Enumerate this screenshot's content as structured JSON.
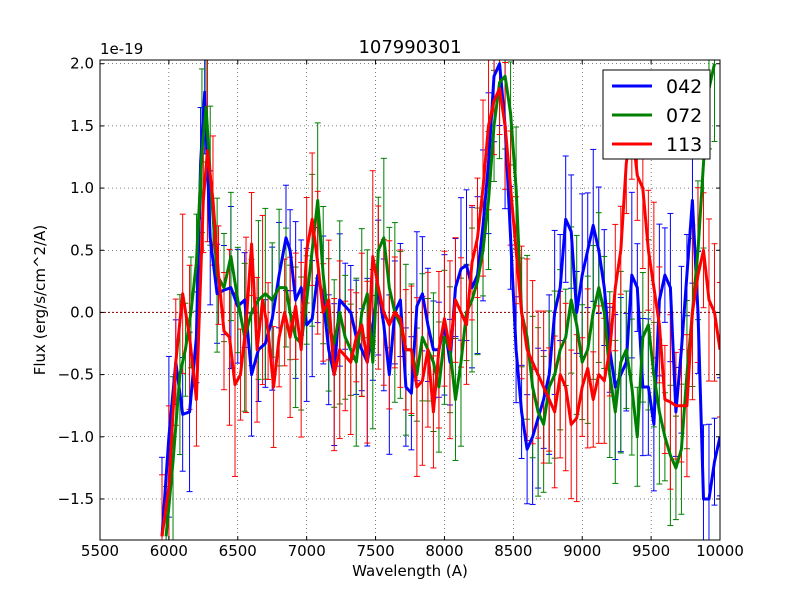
{
  "chart_data": {
    "type": "line",
    "title": "107990301",
    "xlabel": "Wavelength (A)",
    "ylabel": "Flux (erg/s/cm^2/A)",
    "offset_label": "1e-19",
    "xlim": [
      5500,
      10000
    ],
    "ylim": [
      -1.83,
      2.03
    ],
    "xticks": [
      5500,
      6000,
      6500,
      7000,
      7500,
      8000,
      8500,
      9000,
      9500,
      10000
    ],
    "yticks": [
      -1.5,
      -1.0,
      -0.5,
      0.0,
      0.5,
      1.0,
      1.5,
      2.0
    ],
    "ytick_labels": [
      "−1.5",
      "−1.0",
      "−0.5",
      "0.0",
      "0.5",
      "1.0",
      "1.5",
      "2.0"
    ],
    "grid": true,
    "legend_position": "top-right",
    "zero_line": true,
    "series": [
      {
        "name": "042",
        "color": "#0000ff",
        "x": [
          5950,
          6000,
          6050,
          6100,
          6150,
          6200,
          6230,
          6260,
          6300,
          6350,
          6400,
          6450,
          6500,
          6550,
          6600,
          6650,
          6700,
          6750,
          6800,
          6850,
          6880,
          6920,
          6960,
          7000,
          7040,
          7080,
          7120,
          7160,
          7200,
          7240,
          7280,
          7320,
          7360,
          7400,
          7440,
          7480,
          7520,
          7560,
          7600,
          7640,
          7680,
          7720,
          7760,
          7800,
          7840,
          7880,
          7920,
          7960,
          8000,
          8040,
          8080,
          8120,
          8160,
          8200,
          8240,
          8280,
          8320,
          8360,
          8400,
          8440,
          8480,
          8520,
          8560,
          8600,
          8640,
          8680,
          8720,
          8760,
          8800,
          8840,
          8880,
          8920,
          8960,
          9000,
          9040,
          9080,
          9120,
          9160,
          9200,
          9240,
          9280,
          9320,
          9360,
          9400,
          9440,
          9480,
          9520,
          9560,
          9600,
          9640,
          9680,
          9720,
          9760,
          9800,
          9840,
          9880,
          9920,
          9960,
          10000
        ],
        "y": [
          -1.8,
          -1.0,
          -0.4,
          -0.82,
          -0.8,
          -0.2,
          1.2,
          1.77,
          0.6,
          0.15,
          0.18,
          0.2,
          0.05,
          0.1,
          -0.5,
          -0.3,
          -0.25,
          -0.05,
          0.3,
          0.6,
          0.5,
          0.1,
          0.2,
          -0.1,
          -0.05,
          0.3,
          0.1,
          -0.3,
          -0.5,
          0.1,
          0.05,
          0.0,
          -0.2,
          -0.3,
          -0.4,
          -0.1,
          0.2,
          -0.1,
          -0.5,
          0.0,
          0.1,
          -0.6,
          -0.65,
          0.05,
          0.15,
          -0.1,
          -0.3,
          -0.3,
          -0.1,
          -0.4,
          0.2,
          0.35,
          0.38,
          0.2,
          0.3,
          0.7,
          1.2,
          1.9,
          2.0,
          1.5,
          0.6,
          -0.3,
          -0.8,
          -1.1,
          -1.0,
          -0.85,
          -0.7,
          -0.5,
          0.0,
          0.2,
          0.75,
          0.65,
          0.0,
          0.3,
          0.5,
          0.7,
          0.5,
          0.2,
          -0.3,
          -0.6,
          -0.5,
          -0.4,
          0.3,
          0.2,
          -0.6,
          -0.6,
          -0.9,
          0.1,
          0.3,
          0.2,
          -0.8,
          -0.3,
          0.3,
          0.9,
          0.0,
          -1.5,
          -1.5,
          -1.2,
          -1.0
        ],
        "err": 0.45
      },
      {
        "name": "072",
        "color": "#008000",
        "x": [
          5980,
          6030,
          6080,
          6120,
          6160,
          6200,
          6240,
          6270,
          6300,
          6350,
          6400,
          6450,
          6500,
          6550,
          6600,
          6650,
          6700,
          6750,
          6800,
          6850,
          6880,
          6920,
          6960,
          7000,
          7040,
          7080,
          7120,
          7160,
          7200,
          7240,
          7280,
          7320,
          7360,
          7400,
          7440,
          7480,
          7520,
          7560,
          7600,
          7640,
          7680,
          7720,
          7760,
          7800,
          7840,
          7880,
          7920,
          7960,
          8000,
          8040,
          8080,
          8120,
          8160,
          8200,
          8240,
          8280,
          8320,
          8360,
          8400,
          8440,
          8480,
          8520,
          8560,
          8600,
          8640,
          8680,
          8720,
          8760,
          8800,
          8840,
          8880,
          8920,
          8960,
          9000,
          9040,
          9080,
          9120,
          9160,
          9200,
          9240,
          9280,
          9320,
          9360,
          9400,
          9440,
          9480,
          9520,
          9560,
          9600,
          9640,
          9680,
          9720,
          9760,
          9800,
          9840,
          9880,
          9920,
          9960
        ],
        "y": [
          -1.8,
          -1.2,
          -0.5,
          -0.3,
          0.0,
          0.4,
          1.3,
          1.65,
          1.1,
          0.3,
          0.2,
          0.45,
          0.1,
          -0.2,
          0.0,
          0.1,
          0.15,
          0.1,
          0.2,
          0.2,
          0.0,
          -0.2,
          -0.25,
          0.1,
          0.5,
          0.9,
          0.3,
          -0.1,
          -0.25,
          0.0,
          -0.2,
          -0.3,
          -0.4,
          0.0,
          0.15,
          -0.4,
          0.5,
          0.6,
          0.2,
          0.0,
          -0.1,
          -0.3,
          -0.3,
          -0.5,
          -0.2,
          -0.3,
          -0.4,
          -0.6,
          -0.2,
          -0.3,
          -0.7,
          -0.4,
          0.0,
          0.1,
          0.25,
          0.5,
          0.9,
          1.5,
          1.85,
          1.9,
          1.6,
          1.0,
          0.0,
          -0.2,
          -0.6,
          -0.8,
          -0.9,
          -0.6,
          -0.5,
          -0.3,
          -0.2,
          0.1,
          -0.1,
          -0.4,
          -0.3,
          0.0,
          0.2,
          0.0,
          -0.5,
          -0.8,
          -0.4,
          -0.3,
          -0.6,
          -1.0,
          -0.2,
          -0.1,
          -0.5,
          -0.8,
          -1.0,
          -1.15,
          -1.25,
          -1.1,
          -0.5,
          0.0,
          0.5,
          1.2,
          1.8,
          2.0
        ],
        "err": 0.5
      },
      {
        "name": "113",
        "color": "#ff0000",
        "x": [
          5950,
          6000,
          6050,
          6100,
          6150,
          6200,
          6250,
          6280,
          6320,
          6360,
          6400,
          6440,
          6480,
          6520,
          6560,
          6600,
          6640,
          6680,
          6720,
          6760,
          6800,
          6840,
          6880,
          6920,
          6960,
          7000,
          7040,
          7080,
          7120,
          7160,
          7200,
          7240,
          7280,
          7320,
          7360,
          7400,
          7440,
          7480,
          7520,
          7560,
          7600,
          7640,
          7680,
          7720,
          7760,
          7800,
          7840,
          7880,
          7920,
          7960,
          8000,
          8040,
          8080,
          8120,
          8160,
          8200,
          8240,
          8280,
          8320,
          8360,
          8400,
          8440,
          8480,
          8520,
          8560,
          8600,
          8640,
          8680,
          8720,
          8760,
          8800,
          8840,
          8880,
          8920,
          8960,
          9000,
          9040,
          9080,
          9120,
          9160,
          9200,
          9240,
          9280,
          9320,
          9360,
          9400,
          9440,
          9480,
          9520,
          9560,
          9600,
          9640,
          9680,
          9720,
          9760,
          9800,
          9840,
          9880,
          9920,
          9960,
          10000
        ],
        "y": [
          -1.8,
          -1.4,
          -0.4,
          0.15,
          -0.2,
          -0.7,
          0.9,
          1.3,
          0.9,
          0.3,
          -0.15,
          -0.2,
          -0.58,
          -0.5,
          -0.1,
          0.55,
          -0.3,
          0.1,
          -0.15,
          -0.6,
          -0.2,
          0.0,
          -0.2,
          0.05,
          -0.3,
          0.5,
          0.75,
          0.4,
          0.0,
          0.1,
          -0.5,
          -0.3,
          -0.35,
          -0.4,
          -0.2,
          -0.1,
          -0.4,
          0.45,
          0.2,
          0.0,
          -0.1,
          0.0,
          -0.05,
          -0.3,
          -0.3,
          -0.6,
          -0.55,
          -0.3,
          -0.8,
          -0.3,
          -0.05,
          -0.3,
          0.1,
          0.0,
          -0.1,
          0.4,
          0.6,
          1.0,
          1.5,
          1.7,
          1.8,
          1.5,
          1.0,
          0.5,
          0.0,
          -0.3,
          -0.4,
          -0.5,
          -0.6,
          -0.7,
          -0.8,
          -0.5,
          -0.6,
          -0.9,
          -0.85,
          -0.6,
          -0.45,
          -0.7,
          -0.5,
          -0.55,
          -0.3,
          0.2,
          0.5,
          1.2,
          1.5,
          1.1,
          1.0,
          0.5,
          0.2,
          -0.1,
          -0.7,
          -0.72,
          -0.75,
          -0.75,
          -0.75,
          0.0,
          0.3,
          0.5,
          0.1,
          0.0,
          -0.3
        ],
        "err": 0.5
      }
    ]
  }
}
